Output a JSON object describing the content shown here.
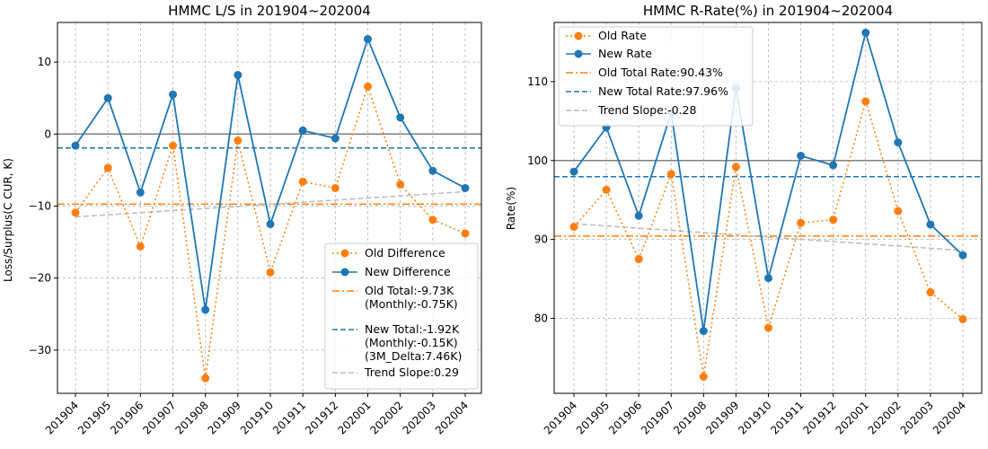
{
  "chart_data": [
    {
      "type": "line",
      "title": "HMMC L/S in 201904~202004",
      "xlabel": "",
      "ylabel": "Loss/Surplus(C CUR, K)",
      "categories": [
        "201904",
        "201905",
        "201906",
        "201907",
        "201908",
        "201909",
        "201910",
        "201911",
        "201912",
        "202001",
        "202002",
        "202003",
        "202004"
      ],
      "ylim": [
        -36,
        15.5
      ],
      "yticks": [
        10,
        0,
        -10,
        -20,
        -30
      ],
      "ytick_labels": [
        "10",
        "0",
        "−10",
        "−20",
        "−30"
      ],
      "grid": true,
      "legend_position": "bottom-right",
      "series": [
        {
          "name": "Old Difference",
          "style": "dotted",
          "marker": "circle",
          "color": "#ff7f0e",
          "values": [
            -10.9,
            -4.7,
            -15.6,
            -1.6,
            -33.9,
            -0.9,
            -19.2,
            -6.6,
            -7.5,
            6.6,
            -7.0,
            -11.9,
            -13.8
          ]
        },
        {
          "name": "New Difference",
          "style": "solid",
          "marker": "circle",
          "color": "#1f77b4",
          "values": [
            -1.6,
            5.0,
            -8.1,
            5.5,
            -24.4,
            8.2,
            -12.5,
            0.5,
            -0.6,
            13.2,
            2.3,
            -5.1,
            -7.5
          ]
        }
      ],
      "reference_lines": [
        {
          "name": "Old Total:-9.73K\n(Monthly:-0.75K)",
          "value": -9.73,
          "style": "dashdot",
          "color": "#ff7f0e"
        },
        {
          "name": "New Total:-1.92K\n(Monthly:-0.15K)\n(3M_Delta:7.46K)",
          "value": -1.92,
          "style": "dashed",
          "color": "#1f77b4"
        },
        {
          "name": "",
          "value": 0,
          "style": "solid",
          "color": "#808080"
        }
      ],
      "trend": {
        "name": "Trend Slope:0.29",
        "start": -11.5,
        "end": -8.0,
        "style": "dashed",
        "color": "#bbbbbb"
      }
    },
    {
      "type": "line",
      "title": "HMMC R-Rate(%) in 201904~202004",
      "xlabel": "",
      "ylabel": "Rate(%)",
      "categories": [
        "201904",
        "201905",
        "201906",
        "201907",
        "201908",
        "201909",
        "201910",
        "201911",
        "201912",
        "202001",
        "202002",
        "202003",
        "202004"
      ],
      "ylim": [
        70.5,
        117.5
      ],
      "yticks": [
        110,
        100,
        90,
        80
      ],
      "ytick_labels": [
        "110",
        "100",
        "90",
        "80"
      ],
      "grid": true,
      "legend_position": "top-left",
      "series": [
        {
          "name": "Old Rate",
          "style": "dotted",
          "marker": "circle",
          "color": "#ff7f0e",
          "values": [
            91.6,
            96.3,
            87.5,
            98.3,
            72.6,
            99.2,
            78.8,
            92.1,
            92.5,
            107.5,
            93.6,
            83.3,
            79.9
          ]
        },
        {
          "name": "New Rate",
          "style": "solid",
          "marker": "circle",
          "color": "#1f77b4",
          "values": [
            98.6,
            104.2,
            93.0,
            106.1,
            78.4,
            109.2,
            85.1,
            100.6,
            99.4,
            116.2,
            102.3,
            91.9,
            88.0
          ]
        }
      ],
      "reference_lines": [
        {
          "name": "Old Total Rate:90.43%",
          "value": 90.43,
          "style": "dashdot",
          "color": "#ff7f0e"
        },
        {
          "name": "New Total Rate:97.96%",
          "value": 97.96,
          "style": "dashed",
          "color": "#1f77b4"
        },
        {
          "name": "",
          "value": 100,
          "style": "solid",
          "color": "#808080"
        }
      ],
      "trend": {
        "name": "Trend Slope:-0.28",
        "start": 92.0,
        "end": 88.6,
        "style": "dashed",
        "color": "#bbbbbb"
      }
    }
  ]
}
